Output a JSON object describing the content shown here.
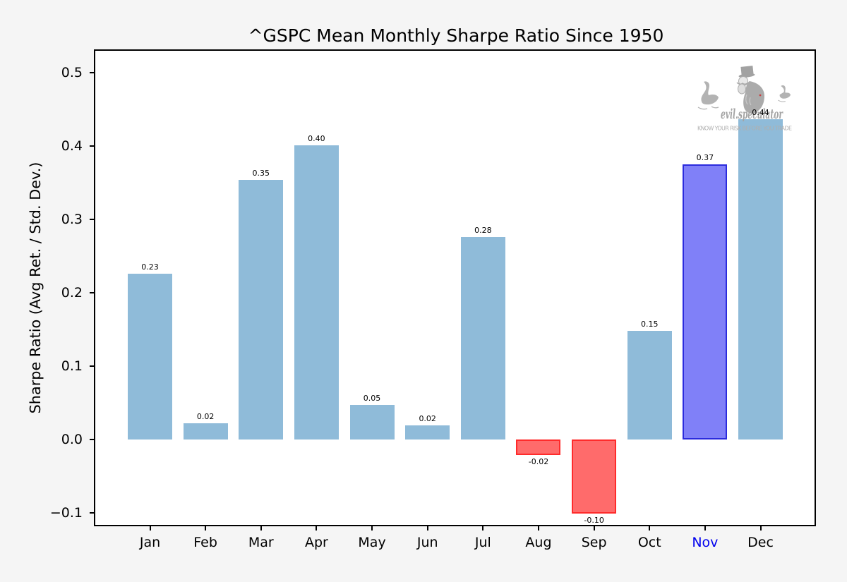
{
  "title": "^GSPC Mean Monthly Sharpe Ratio Since 1950",
  "ylabel": "Sharpe Ratio (Avg Ret. / Std. Dev.)",
  "watermark": {
    "brand": "evil.speculator",
    "tagline": "KNOW YOUR RISK BEFORE YOU TRADE",
    "color": "#ACACAC"
  },
  "colors": {
    "figure_bg": "#F5F5F5",
    "plot_bg": "#FFFFFF",
    "bar": "#8FBBD9",
    "bar_negative_fill": "#FF6B6B",
    "bar_negative_edge": "#FF2B2B",
    "bar_highlight_fill": "#8080F8",
    "bar_highlight_edge": "#2B2BDD",
    "highlight_tick_label": "#0000EE",
    "axis": "#000000"
  },
  "chart_data": {
    "type": "bar",
    "title": "^GSPC Mean Monthly Sharpe Ratio Since 1950",
    "xlabel": "",
    "ylabel": "Sharpe Ratio (Avg Ret. / Std. Dev.)",
    "categories": [
      "Jan",
      "Feb",
      "Mar",
      "Apr",
      "May",
      "Jun",
      "Jul",
      "Aug",
      "Sep",
      "Oct",
      "Nov",
      "Dec"
    ],
    "values": [
      0.23,
      0.02,
      0.35,
      0.4,
      0.05,
      0.02,
      0.28,
      -0.02,
      -0.1,
      0.15,
      0.37,
      0.44
    ],
    "values_precise": [
      0.226,
      0.022,
      0.354,
      0.401,
      0.047,
      0.019,
      0.276,
      -0.021,
      -0.101,
      0.148,
      0.375,
      0.437
    ],
    "bar_labels": [
      "0.23",
      "0.02",
      "0.35",
      "0.40",
      "0.05",
      "0.02",
      "0.28",
      "-0.02",
      "-0.10",
      "0.15",
      "0.37",
      "0.44"
    ],
    "yticks": [
      0.5,
      0.4,
      0.3,
      0.2,
      0.1,
      0.0,
      -0.1
    ],
    "ytick_labels": [
      "0.5",
      "0.4",
      "0.3",
      "0.2",
      "0.1",
      "0.0",
      "−0.1"
    ],
    "ylim": [
      -0.118,
      0.531
    ],
    "grid": false,
    "legend": null,
    "highlighted_category": "Nov",
    "negative_categories": [
      "Aug",
      "Sep"
    ]
  }
}
